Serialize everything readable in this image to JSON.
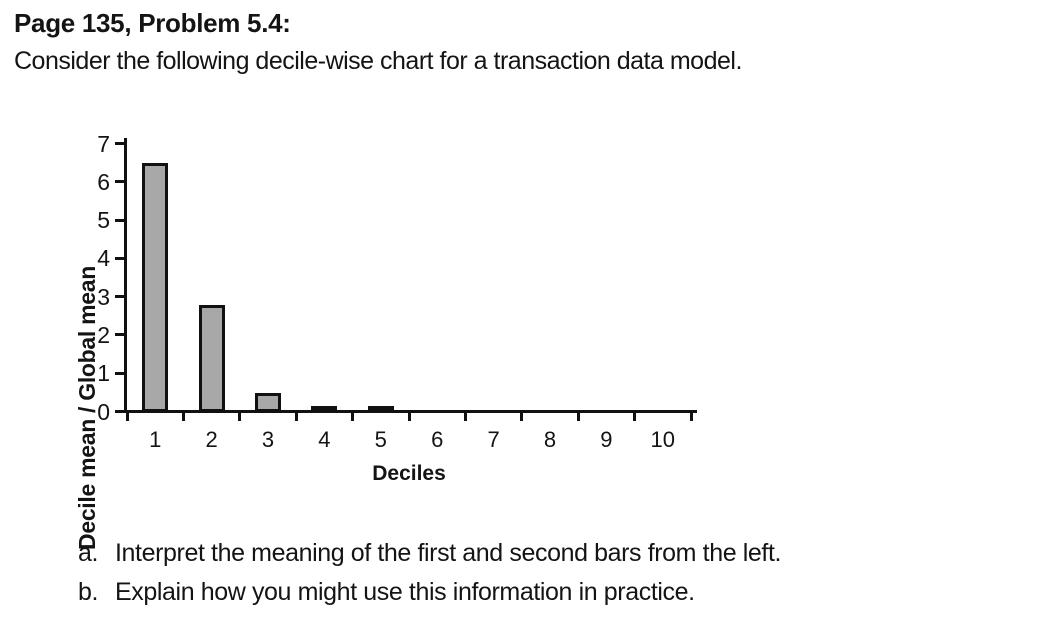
{
  "page": {
    "title": "Page 135, Problem 5.4:",
    "intro": "Consider the following decile-wise chart for a transaction data model."
  },
  "chart_data": {
    "type": "bar",
    "categories": [
      "1",
      "2",
      "3",
      "4",
      "5",
      "6",
      "7",
      "8",
      "9",
      "10"
    ],
    "values": [
      6.5,
      2.8,
      0.5,
      0.1,
      0.1,
      0,
      0,
      0,
      0,
      0
    ],
    "title": "",
    "xlabel": "Deciles",
    "ylabel": "Decile mean / Global mean",
    "ylim": [
      0,
      7
    ],
    "yticks": [
      0,
      1,
      2,
      3,
      4,
      5,
      6,
      7
    ],
    "grid": false,
    "legend_position": "none",
    "bar_fill_color": "#a8a8a8",
    "bar_border_color": "#111111",
    "axis_color": "#111111"
  },
  "questions": {
    "a_marker": "a.",
    "a_text": "Interpret the meaning of the first and second bars from the left.",
    "b_marker": "b.",
    "b_text": "Explain how you might use this information in practice."
  }
}
